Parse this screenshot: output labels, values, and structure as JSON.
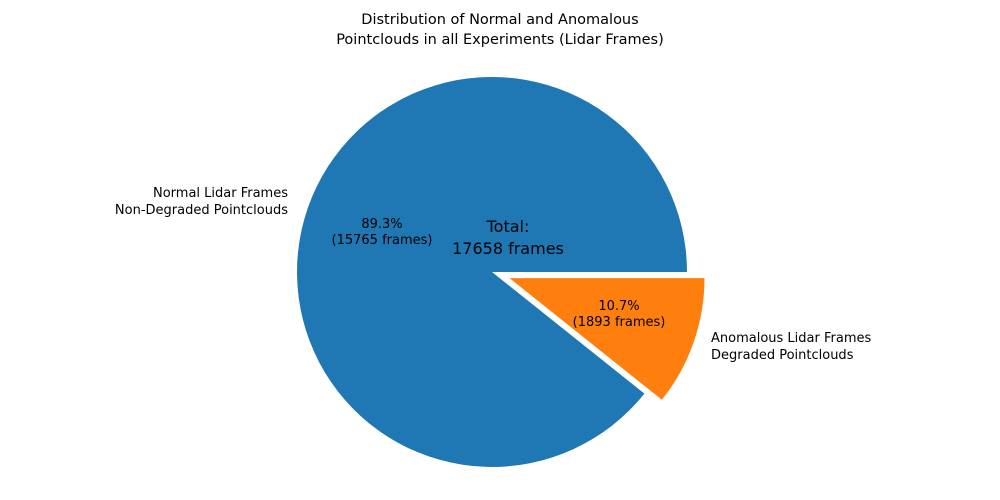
{
  "chart_data": {
    "type": "pie",
    "title": "Distribution of Normal and Anomalous\nPointclouds in all Experiments (Lidar Frames)",
    "total": 17658,
    "total_label": "Total:\n17658 frames",
    "start_angle": 0,
    "direction": "counterclockwise",
    "background_color": "#ffffff",
    "slices": [
      {
        "label": "Normal Lidar Frames\nNon-Degraded Pointclouds",
        "value": 15765,
        "pct": 89.3,
        "pct_label": "89.3%\n(15765 frames)",
        "color": "#1f77b4",
        "explode": 0
      },
      {
        "label": "Anomalous Lidar Frames\nDegraded Pointclouds",
        "value": 1893,
        "pct": 10.7,
        "pct_label": "10.7%\n(1893 frames)",
        "color": "#ff7f0e",
        "explode": 0.095
      }
    ]
  }
}
